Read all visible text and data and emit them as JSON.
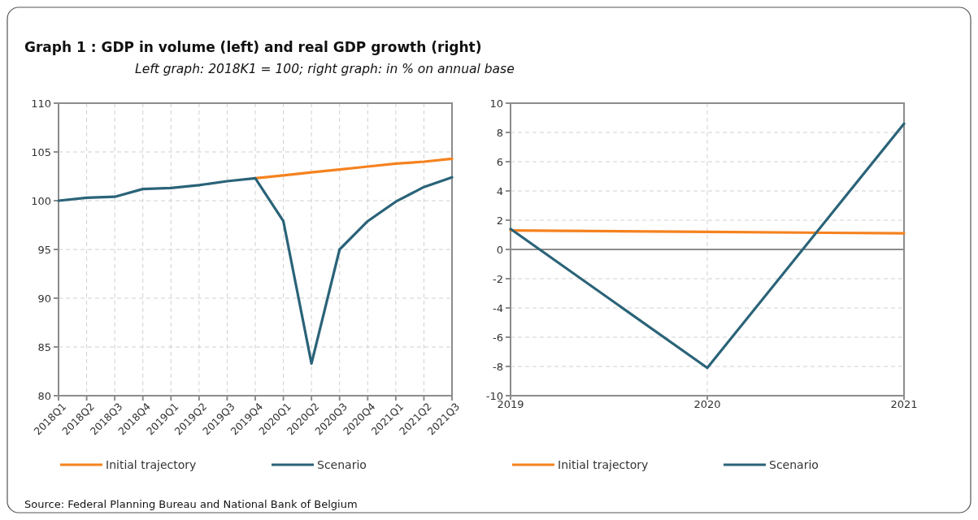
{
  "chart_data": [
    {
      "type": "line",
      "title": "Graph 1 :   GDP in volume (left) and real GDP growth (right)",
      "subtitle": "Left graph: 2018K1 = 100; right graph: in % on annual base",
      "categories": [
        "2018Q1",
        "2018Q2",
        "2018Q3",
        "2018Q4",
        "2019Q1",
        "2019Q2",
        "2019Q3",
        "2019Q4",
        "2020Q1",
        "2020Q2",
        "2020Q3",
        "2020Q4",
        "2021Q1",
        "2021Q2",
        "2021Q3"
      ],
      "ylim": [
        80,
        110
      ],
      "yticks": [
        80,
        85,
        90,
        95,
        100,
        105,
        110
      ],
      "grid": true,
      "legend": "bottom",
      "annotations": [
        "Source: Federal Planning Bureau and National Bank of Belgium"
      ],
      "series": [
        {
          "name": "Initial trajectory",
          "color": "#f5821f",
          "values": [
            null,
            null,
            null,
            null,
            null,
            null,
            null,
            102.3,
            102.6,
            102.9,
            103.2,
            103.5,
            103.8,
            104.0,
            104.3
          ]
        },
        {
          "name": "Scenario",
          "color": "#2a6378",
          "values": [
            100,
            100.3,
            100.4,
            101.2,
            101.3,
            101.6,
            102.0,
            102.3,
            97.9,
            83.3,
            95.0,
            97.9,
            99.9,
            101.4,
            102.4
          ]
        }
      ]
    },
    {
      "type": "line",
      "x": [
        2019,
        2020,
        2021
      ],
      "xlim": [
        2019,
        2021
      ],
      "xticks": [
        2019,
        2020,
        2021
      ],
      "ylim": [
        -10,
        10
      ],
      "yticks": [
        -10,
        -8,
        -6,
        -4,
        -2,
        0,
        2,
        4,
        6,
        8,
        10
      ],
      "grid": true,
      "legend": "bottom",
      "ref_lines": [
        {
          "axis": "y",
          "value": 0,
          "color": "#8c8c8c"
        }
      ],
      "series": [
        {
          "name": "Initial trajectory",
          "color": "#f5821f",
          "values": [
            1.3,
            1.2,
            1.1
          ]
        },
        {
          "name": "Scenario",
          "color": "#2a6378",
          "values": [
            1.4,
            -8.1,
            8.6
          ]
        }
      ]
    }
  ]
}
